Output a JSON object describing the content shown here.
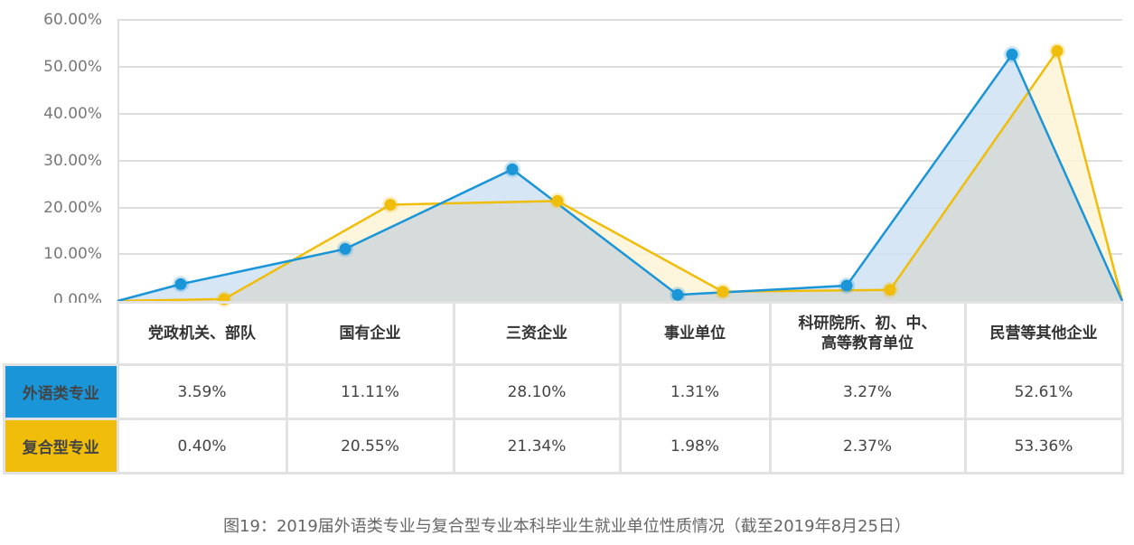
{
  "chart_data": {
    "type": "area",
    "title": "图19：2019届外语类专业与复合型专业本科毕业生就业单位性质情况（截至2019年8月25日）",
    "xlabel": "",
    "ylabel": "",
    "ylim": [
      0,
      60
    ],
    "yticks": [
      "60.00%",
      "50.00%",
      "40.00%",
      "30.00%",
      "20.00%",
      "10.00%",
      "0.00%"
    ],
    "grid": true,
    "legend_position": "table-left",
    "categories": [
      "党政机关、部队",
      "国有企业",
      "三资企业",
      "事业单位",
      "科研院所、初、中、高等教育单位",
      "民营等其他企业"
    ],
    "series": [
      {
        "name": "外语类专业",
        "color": "#1a95d8",
        "fill": "#cfe2f3",
        "values": [
          3.59,
          11.11,
          28.1,
          1.31,
          3.27,
          52.61
        ],
        "labels": [
          "3.59%",
          "11.11%",
          "28.10%",
          "1.31%",
          "3.27%",
          "52.61%"
        ]
      },
      {
        "name": "复合型专业",
        "color": "#f0bd0a",
        "fill": "#fdf3d6",
        "values": [
          0.4,
          20.55,
          21.34,
          1.98,
          2.37,
          53.36
        ],
        "labels": [
          "0.40%",
          "20.55%",
          "21.34%",
          "1.98%",
          "2.37%",
          "53.36%"
        ]
      }
    ]
  },
  "table": {
    "headers": [
      "党政机关、部队",
      "国有企业",
      "三资企业",
      "事业单位",
      "科研院所、初、中、",
      "民营等其他企业"
    ],
    "header_line2": {
      "4": "高等教育单位"
    },
    "rows": [
      {
        "label": "外语类专业",
        "color": "#1a95d8",
        "cells": [
          "3.59%",
          "11.11%",
          "28.10%",
          "1.31%",
          "3.27%",
          "52.61%"
        ]
      },
      {
        "label": "复合型专业",
        "color": "#f0bd0a",
        "cells": [
          "0.40%",
          "20.55%",
          "21.34%",
          "1.98%",
          "2.37%",
          "53.36%"
        ]
      }
    ]
  },
  "caption": "图19：2019届外语类专业与复合型专业本科毕业生就业单位性质情况（截至2019年8月25日）"
}
